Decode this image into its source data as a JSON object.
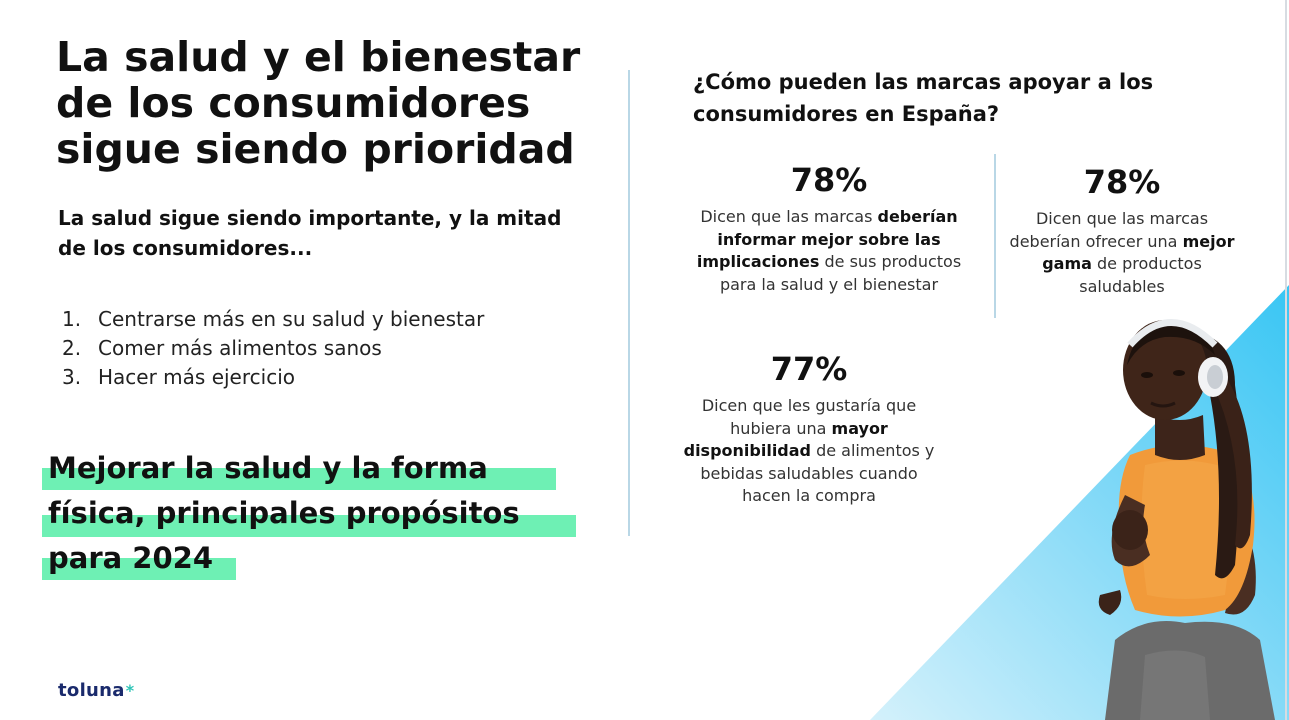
{
  "left": {
    "title": "La salud y el bienestar de los consumidores sigue siendo prioridad",
    "subtitle": "La salud sigue siendo importante, y la mitad de los consumidores...",
    "list": [
      {
        "num": "1.",
        "text": "Centrarse más en su salud y bienestar"
      },
      {
        "num": "2.",
        "text": "Comer más alimentos sanos"
      },
      {
        "num": "3.",
        "text": "Hacer más ejercicio"
      }
    ],
    "highlight_lines": [
      "Mejorar la salud y la forma",
      "física, principales propósitos",
      "para 2024"
    ],
    "highlight_color": "#6ef0b4"
  },
  "logo": {
    "text": "toluna",
    "star": "*"
  },
  "right": {
    "question": "¿Cómo pueden las marcas apoyar a los consumidores en España?",
    "stats": [
      {
        "value": "78%",
        "parts": [
          {
            "t": "Dicen que las marcas ",
            "b": false
          },
          {
            "t": "deberían informar mejor sobre las implicaciones",
            "b": true
          },
          {
            "t": " de sus productos para la salud y el bienestar",
            "b": false
          }
        ]
      },
      {
        "value": "78%",
        "parts": [
          {
            "t": "Dicen que las marcas deberían ofrecer una ",
            "b": false
          },
          {
            "t": "mejor gama",
            "b": true
          },
          {
            "t": " de productos saludables",
            "b": false
          }
        ]
      },
      {
        "value": "77%",
        "parts": [
          {
            "t": "Dicen que les gustaría que hubiera una ",
            "b": false
          },
          {
            "t": "mayor disponibilidad",
            "b": true
          },
          {
            "t": " de alimentos y bebidas saludables cuando hacen la compra",
            "b": false
          }
        ]
      }
    ]
  },
  "colors": {
    "accent_blue": "#2fc4f2",
    "divider": "#b9d7e6",
    "logo_navy": "#1a2a6c"
  },
  "image": {
    "icon": "runner-with-headphones-photo"
  }
}
